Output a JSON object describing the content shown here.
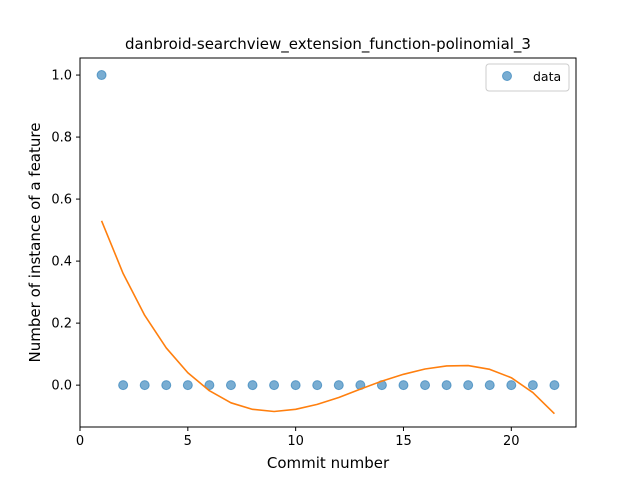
{
  "chart_data": {
    "type": "scatter",
    "title": "danbroid-searchview_extension_function-polinomial_3",
    "xlabel": "Commit number",
    "ylabel": "Number of instance of a feature",
    "xlim": [
      0,
      23
    ],
    "ylim": [
      -0.135,
      1.055
    ],
    "xticks": [
      0,
      5,
      10,
      15,
      20
    ],
    "xtick_labels": [
      "0",
      "5",
      "10",
      "15",
      "20"
    ],
    "yticks": [
      0.0,
      0.2,
      0.4,
      0.6,
      0.8,
      1.0
    ],
    "ytick_labels": [
      "0.0",
      "0.2",
      "0.4",
      "0.6",
      "0.8",
      "1.0"
    ],
    "grid": false,
    "legend_position": "top-right",
    "series": [
      {
        "name": "data",
        "kind": "scatter",
        "color": "#1f77b4",
        "x": [
          1,
          2,
          3,
          4,
          5,
          6,
          7,
          8,
          9,
          10,
          11,
          12,
          13,
          14,
          15,
          16,
          17,
          18,
          19,
          20,
          21,
          22
        ],
        "y": [
          1,
          0,
          0,
          0,
          0,
          0,
          0,
          0,
          0,
          0,
          0,
          0,
          0,
          0,
          0,
          0,
          0,
          0,
          0,
          0,
          0,
          0
        ]
      },
      {
        "kind": "line",
        "color": "#ff7f0e",
        "x": [
          1,
          2,
          3,
          4,
          5,
          6,
          7,
          8,
          9,
          10,
          11,
          12,
          13,
          14,
          15,
          16,
          17,
          18,
          19,
          20,
          21,
          22
        ],
        "y": [
          0.53,
          0.36,
          0.225,
          0.12,
          0.04,
          -0.018,
          -0.057,
          -0.078,
          -0.085,
          -0.078,
          -0.062,
          -0.04,
          -0.013,
          0.013,
          0.035,
          0.052,
          0.062,
          0.063,
          0.051,
          0.024,
          -0.024,
          -0.092
        ]
      }
    ]
  }
}
